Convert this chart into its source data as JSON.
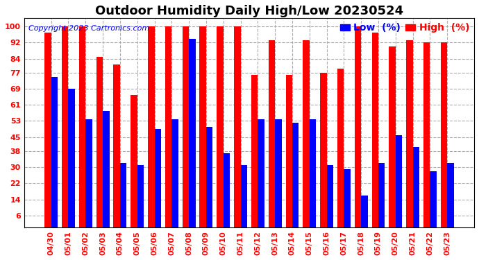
{
  "title": "Outdoor Humidity Daily High/Low 20230524",
  "copyright": "Copyright 2023 Cartronics.com",
  "legend_low_label": "Low  (%)",
  "legend_high_label": "High  (%)",
  "dates": [
    "04/30",
    "05/01",
    "05/02",
    "05/03",
    "05/04",
    "05/05",
    "05/06",
    "05/07",
    "05/08",
    "05/09",
    "05/10",
    "05/11",
    "05/12",
    "05/13",
    "05/14",
    "05/15",
    "05/16",
    "05/17",
    "05/18",
    "05/19",
    "05/20",
    "05/21",
    "05/22",
    "05/23"
  ],
  "high": [
    97,
    100,
    100,
    85,
    81,
    66,
    100,
    100,
    100,
    100,
    100,
    100,
    76,
    93,
    76,
    93,
    77,
    79,
    100,
    97,
    90,
    93,
    92,
    92
  ],
  "low": [
    75,
    69,
    54,
    58,
    32,
    31,
    49,
    54,
    94,
    50,
    37,
    31,
    54,
    54,
    52,
    54,
    31,
    29,
    16,
    32,
    46,
    40,
    28,
    32
  ],
  "bar_color_high": "#FF0000",
  "bar_color_low": "#0000FF",
  "background_color": "#FFFFFF",
  "grid_color": "#AAAAAA",
  "yticks": [
    6,
    14,
    22,
    30,
    38,
    45,
    53,
    61,
    69,
    77,
    84,
    92,
    100
  ],
  "ylim": [
    0,
    104
  ],
  "title_fontsize": 13,
  "copyright_fontsize": 8,
  "legend_fontsize": 10,
  "tick_fontsize": 8
}
